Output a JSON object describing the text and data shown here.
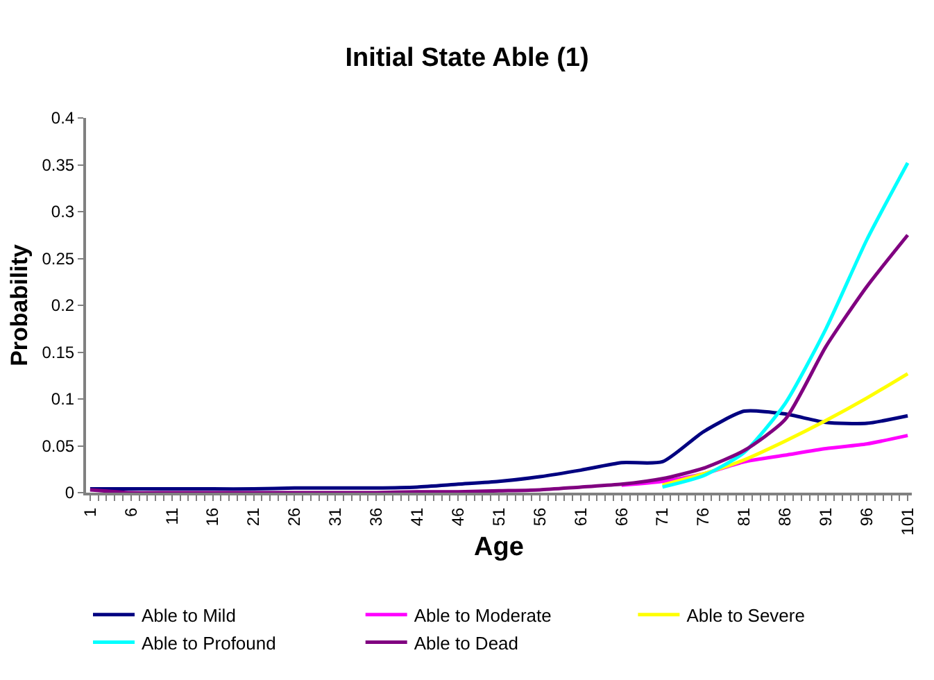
{
  "chart_data": {
    "type": "line",
    "title": "Initial State Able (1)",
    "xlabel": "Age",
    "ylabel": "Probability",
    "x": [
      1,
      6,
      11,
      16,
      21,
      26,
      31,
      36,
      41,
      46,
      51,
      56,
      61,
      66,
      71,
      76,
      81,
      86,
      91,
      96,
      101
    ],
    "xlim": [
      0.5,
      101.5
    ],
    "xticks": [
      1,
      6,
      11,
      16,
      21,
      26,
      31,
      36,
      41,
      46,
      51,
      56,
      61,
      66,
      71,
      76,
      81,
      86,
      91,
      96,
      101
    ],
    "ylim": [
      0,
      0.4
    ],
    "yticks": [
      0,
      0.05,
      0.1,
      0.15,
      0.2,
      0.25,
      0.3,
      0.35,
      0.4
    ],
    "legend": "bottom",
    "marker": "none",
    "line_style": "solid",
    "series": [
      {
        "name": "Able to Mild",
        "color": "#000080",
        "values": [
          0.004,
          0.004,
          0.004,
          0.004,
          0.004,
          0.005,
          0.005,
          0.005,
          0.006,
          0.009,
          0.012,
          0.017,
          0.024,
          0.032,
          0.033,
          0.065,
          0.087,
          0.084,
          0.075,
          0.074,
          0.082
        ]
      },
      {
        "name": "Able to Moderate",
        "color": "#ff00ff",
        "values": [
          null,
          null,
          null,
          null,
          null,
          null,
          null,
          null,
          null,
          null,
          null,
          null,
          null,
          0.008,
          0.012,
          0.02,
          0.033,
          0.04,
          0.047,
          0.052,
          0.061
        ]
      },
      {
        "name": "Able to Severe",
        "color": "#ffff00",
        "values": [
          null,
          null,
          null,
          null,
          null,
          null,
          null,
          null,
          null,
          null,
          null,
          null,
          null,
          null,
          0.008,
          0.02,
          0.035,
          0.055,
          0.077,
          0.101,
          0.127
        ]
      },
      {
        "name": "Able to Profound",
        "color": "#00ffff",
        "values": [
          null,
          null,
          null,
          null,
          null,
          null,
          null,
          null,
          null,
          null,
          null,
          null,
          null,
          null,
          0.006,
          0.018,
          0.043,
          0.095,
          0.175,
          0.27,
          0.352
        ]
      },
      {
        "name": "Able to Dead",
        "color": "#800080",
        "values": [
          0.003,
          0.0,
          0.0,
          0.0,
          0.0,
          0.0,
          0.0,
          0.0,
          0.001,
          0.001,
          0.002,
          0.003,
          0.006,
          0.009,
          0.015,
          0.026,
          0.045,
          0.078,
          0.156,
          0.22,
          0.275
        ]
      }
    ]
  }
}
